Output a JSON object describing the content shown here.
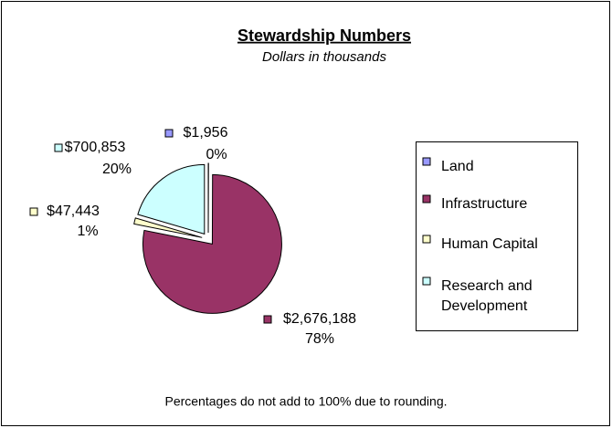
{
  "chart_data": {
    "type": "pie",
    "title": "Stewardship Numbers",
    "subtitle": "Dollars in thousands",
    "categories": [
      "Land",
      "Infrastructure",
      "Human Capital",
      "Research and Development"
    ],
    "values": [
      1956,
      2676188,
      47443,
      700853
    ],
    "value_labels": [
      "$1,956",
      "$2,676,188",
      "$47,443",
      "$700,853"
    ],
    "percent_labels": [
      "0%",
      "78%",
      "1%",
      "20%"
    ],
    "colors": [
      "#9999ff",
      "#993366",
      "#ffffcc",
      "#ccffff"
    ],
    "legend": "right",
    "annotation": "Percentages do not add to 100% due to rounding."
  }
}
